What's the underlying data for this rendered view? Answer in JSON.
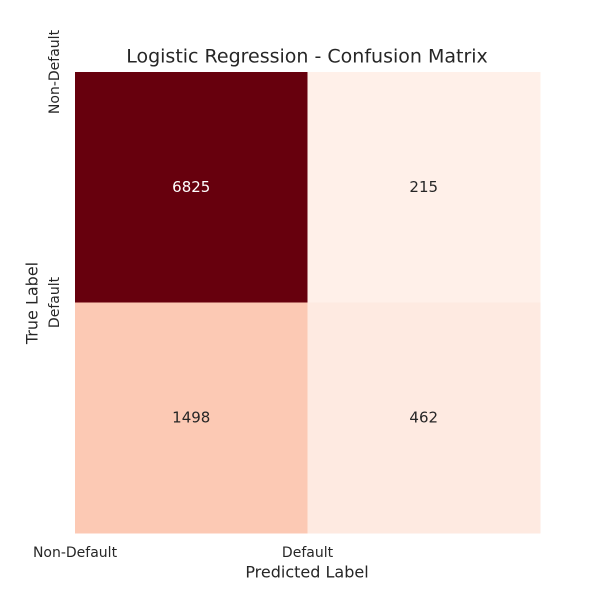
{
  "chart_data": {
    "type": "heatmap",
    "title": "Logistic Regression - Confusion Matrix",
    "x_label": "Predicted Label",
    "y_label": "True Label",
    "x_categories": [
      "Non-Default",
      "Default"
    ],
    "y_categories": [
      "Non-Default",
      "Default"
    ],
    "values": [
      [
        6825,
        215
      ],
      [
        1498,
        462
      ]
    ],
    "colors": [
      [
        "#67000d",
        "#fff0e9"
      ],
      [
        "#fcc9b4",
        "#feeae1"
      ]
    ]
  }
}
